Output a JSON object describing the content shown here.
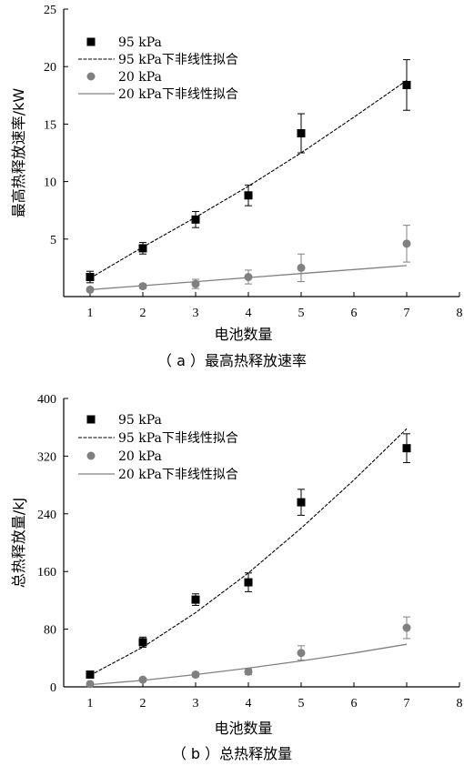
{
  "chart_data": [
    {
      "type": "scatter",
      "caption": "（ a ）最高热释放速率",
      "xlabel": "电池数量",
      "ylabel": "最高热释放速率/kW",
      "xlim": [
        0.5,
        8
      ],
      "ylim": [
        0,
        25
      ],
      "xticks": [
        1,
        2,
        3,
        4,
        5,
        6,
        7,
        8
      ],
      "yticks": [
        5,
        10,
        15,
        20,
        25
      ],
      "grid": false,
      "legend_position": "top-left",
      "series": [
        {
          "name": "95 kPa",
          "kind": "points",
          "marker": "square",
          "color": "#000000",
          "x": [
            1,
            2,
            3,
            4,
            5,
            7
          ],
          "y": [
            1.7,
            4.2,
            6.7,
            8.8,
            14.2,
            18.4
          ],
          "err": [
            0.5,
            0.5,
            0.7,
            0.9,
            1.7,
            2.2
          ]
        },
        {
          "name": "95 kPa下非线性拟合",
          "kind": "fit",
          "dash": "4,1.5",
          "color": "#000000",
          "x": [
            1,
            2,
            3,
            4,
            5,
            6,
            7
          ],
          "y": [
            1.6,
            4.3,
            6.9,
            9.6,
            12.5,
            15.6,
            18.8
          ]
        },
        {
          "name": "20 kPa",
          "kind": "points",
          "marker": "circle",
          "color": "#808080",
          "x": [
            1,
            2,
            3,
            4,
            5,
            7
          ],
          "y": [
            0.6,
            0.9,
            1.1,
            1.7,
            2.5,
            4.6
          ],
          "err": [
            0.15,
            0.2,
            0.4,
            0.6,
            1.2,
            1.6
          ]
        },
        {
          "name": "20 kPa下非线性拟合",
          "kind": "fit",
          "dash": "",
          "color": "#808080",
          "x": [
            1,
            2,
            3,
            4,
            5,
            6,
            7
          ],
          "y": [
            0.6,
            0.95,
            1.3,
            1.65,
            2.0,
            2.35,
            2.7
          ]
        }
      ]
    },
    {
      "type": "scatter",
      "caption": "（ b ）总热释放量",
      "xlabel": "电池数量",
      "ylabel": "总热释放量/kJ",
      "xlim": [
        0.5,
        8
      ],
      "ylim": [
        0,
        400
      ],
      "xticks": [
        1,
        2,
        3,
        4,
        5,
        6,
        7,
        8
      ],
      "yticks": [
        0,
        80,
        160,
        240,
        320,
        400
      ],
      "grid": false,
      "legend_position": "top-left",
      "series": [
        {
          "name": "95 kPa",
          "kind": "points",
          "marker": "square",
          "color": "#000000",
          "x": [
            1,
            2,
            3,
            4,
            5,
            7
          ],
          "y": [
            17,
            62,
            121,
            145,
            256,
            331
          ],
          "err": [
            5,
            7,
            8,
            13,
            18,
            20
          ]
        },
        {
          "name": "95 kPa下非线性拟合",
          "kind": "fit",
          "dash": "4,1.5",
          "color": "#000000",
          "x": [
            1,
            2,
            3,
            4,
            5,
            6,
            7
          ],
          "y": [
            16,
            55,
            103,
            158,
            220,
            287,
            358
          ]
        },
        {
          "name": "20 kPa",
          "kind": "points",
          "marker": "circle",
          "color": "#808080",
          "x": [
            1,
            2,
            3,
            4,
            5,
            7
          ],
          "y": [
            4,
            10,
            17,
            21,
            47,
            82
          ],
          "err": [
            2,
            2,
            3,
            4,
            10,
            15
          ]
        },
        {
          "name": "20 kPa下非线性拟合",
          "kind": "fit",
          "dash": "",
          "color": "#808080",
          "x": [
            1,
            2,
            3,
            4,
            5,
            6,
            7
          ],
          "y": [
            3,
            9,
            17,
            26,
            36,
            47,
            59
          ]
        }
      ]
    }
  ]
}
